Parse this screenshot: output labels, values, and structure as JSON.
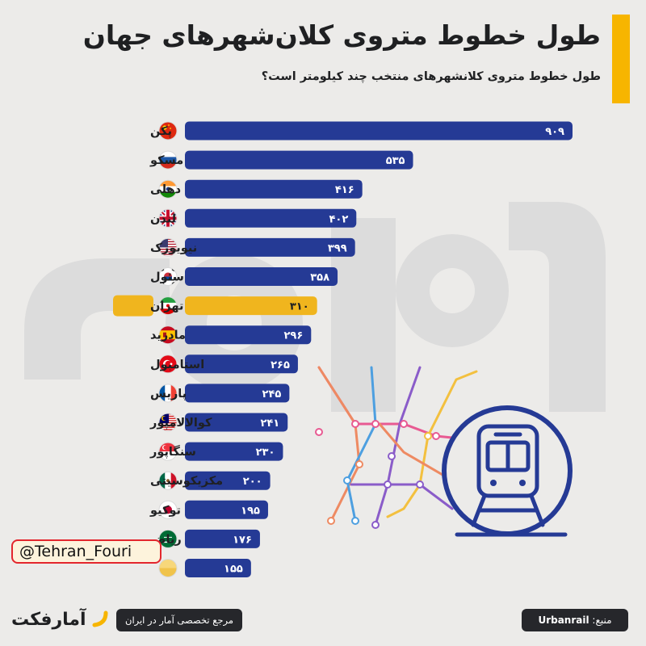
{
  "header": {
    "title": "طول خطوط متروی کلان‌شهرهای جهان",
    "subtitle": "طول خطوط متروی کلانشهرهای منتخب چند کیلومتر است؟"
  },
  "colors": {
    "bar": "#253a95",
    "highlight": "#f0b51e",
    "accent": "#f7b500",
    "text": "#1f2022"
  },
  "chart_data": {
    "type": "bar",
    "orientation": "horizontal",
    "title": "طول خطوط متروی کلان‌شهرهای جهان",
    "subtitle": "طول خطوط متروی کلانشهرهای منتخب چند کیلومتر است؟",
    "categories": [
      "پکن",
      "مسکو",
      "دهلی",
      "لندن",
      "نیویورک",
      "سئول",
      "تهران",
      "مادرید",
      "استامبول",
      "پاریس",
      "کوالالامپور",
      "سنگاپور",
      "مکزیکوسیتی",
      "توکیو",
      "ریاض",
      ""
    ],
    "values": [
      909,
      535,
      416,
      402,
      399,
      358,
      310,
      296,
      265,
      245,
      241,
      230,
      200,
      195,
      176,
      155
    ],
    "value_labels": [
      "۹۰۹",
      "۵۳۵",
      "۴۱۶",
      "۴۰۲",
      "۳۹۹",
      "۳۵۸",
      "۳۱۰",
      "۲۹۶",
      "۲۶۵",
      "۲۴۵",
      "۲۴۱",
      "۲۳۰",
      "۲۰۰",
      "۱۹۵",
      "۱۷۶",
      "۱۵۵"
    ],
    "flags": [
      "china-flag-icon",
      "russia-flag-icon",
      "india-flag-icon",
      "uk-flag-icon",
      "usa-flag-icon",
      "korea-flag-icon",
      "iran-flag-icon",
      "spain-flag-icon",
      "turkey-flag-icon",
      "france-flag-icon",
      "malaysia-flag-icon",
      "singapore-flag-icon",
      "mexico-flag-icon",
      "japan-flag-icon",
      "saudi-flag-icon",
      "flag-icon"
    ],
    "highlight": "تهران",
    "xlim": [
      0,
      909
    ],
    "grid": false,
    "legend": "none"
  },
  "watermark_handle": "@Tehran_Fouri",
  "footer": {
    "logo_text": "آمارفکت",
    "reference": "مرجع تخصصی آمار در ایران",
    "source_label": "منبع:",
    "source_value": "Urbanrail"
  }
}
